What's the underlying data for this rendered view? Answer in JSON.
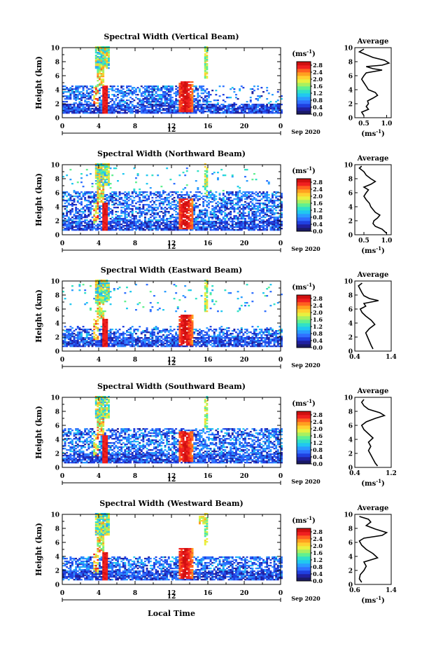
{
  "figure": {
    "xlabel": "Local Time",
    "date_label": "Sep 2020",
    "day_label": "12",
    "colorbar": {
      "unit_label": "(ms-1)",
      "ticks": [
        "0.0",
        "0.4",
        "0.8",
        "1.2",
        "1.6",
        "2.0",
        "2.4",
        "2.8"
      ],
      "colors": [
        "#1a1a66",
        "#2020a0",
        "#2040e0",
        "#3070ff",
        "#2a9cff",
        "#20c8f0",
        "#30e0c8",
        "#60f090",
        "#a8f060",
        "#e8f040",
        "#ffd030",
        "#ffa020",
        "#ff6020",
        "#f02020",
        "#d01010"
      ]
    },
    "avg_title": "Average"
  },
  "chart_data": [
    {
      "type": "heatmap",
      "title": "Spectral Width (Vertical Beam)",
      "ylabel": "Height (km)",
      "xlim": [
        0,
        24
      ],
      "ylim": [
        0,
        10
      ],
      "xticks": [
        "0",
        "4",
        "8",
        "12",
        "16",
        "20",
        "0"
      ],
      "yticks": [
        "0",
        "2",
        "4",
        "6",
        "8",
        "10"
      ],
      "clim": [
        0,
        3.0
      ],
      "average": {
        "xlabel": "(ms-1)",
        "xlim": [
          0.3,
          1.1
        ],
        "xticks": [
          "0.5",
          "1.0"
        ],
        "profile": [
          [
            0.5,
            0.3
          ],
          [
            0.45,
            0.8
          ],
          [
            0.6,
            1.2
          ],
          [
            0.55,
            1.6
          ],
          [
            0.6,
            2.0
          ],
          [
            0.58,
            2.4
          ],
          [
            0.7,
            2.8
          ],
          [
            0.8,
            3.2
          ],
          [
            0.75,
            3.6
          ],
          [
            0.6,
            4.0
          ],
          [
            0.55,
            4.5
          ],
          [
            0.5,
            5.0
          ],
          [
            0.45,
            5.5
          ],
          [
            0.5,
            6.0
          ],
          [
            0.55,
            6.4
          ],
          [
            0.9,
            6.8
          ],
          [
            0.7,
            7.0
          ],
          [
            0.55,
            7.3
          ],
          [
            0.9,
            7.5
          ],
          [
            1.05,
            7.8
          ],
          [
            0.95,
            8.2
          ],
          [
            0.7,
            8.6
          ],
          [
            0.55,
            9.0
          ],
          [
            0.4,
            9.4
          ],
          [
            0.5,
            9.8
          ]
        ]
      }
    },
    {
      "type": "heatmap",
      "title": "Spectral Width (Northward Beam)",
      "ylabel": "Height (km)",
      "xlim": [
        0,
        24
      ],
      "ylim": [
        0,
        10
      ],
      "xticks": [
        "0",
        "4",
        "8",
        "12",
        "16",
        "20",
        "0"
      ],
      "yticks": [
        "0",
        "2",
        "4",
        "6",
        "8",
        "10"
      ],
      "clim": [
        0,
        3.0
      ],
      "average": {
        "xlabel": "(ms-1)",
        "xlim": [
          0.3,
          1.1
        ],
        "xticks": [
          "0.5",
          "1.0"
        ],
        "profile": [
          [
            1.0,
            0.2
          ],
          [
            0.9,
            0.8
          ],
          [
            0.75,
            1.2
          ],
          [
            0.7,
            1.6
          ],
          [
            0.72,
            2.0
          ],
          [
            0.8,
            2.4
          ],
          [
            0.85,
            2.8
          ],
          [
            0.75,
            3.2
          ],
          [
            0.7,
            3.6
          ],
          [
            0.65,
            4.0
          ],
          [
            0.62,
            4.5
          ],
          [
            0.55,
            5.0
          ],
          [
            0.5,
            5.5
          ],
          [
            0.55,
            6.0
          ],
          [
            0.6,
            6.4
          ],
          [
            0.5,
            6.8
          ],
          [
            0.65,
            7.2
          ],
          [
            0.75,
            7.6
          ],
          [
            0.65,
            8.0
          ],
          [
            0.55,
            8.5
          ],
          [
            0.5,
            9.0
          ],
          [
            0.4,
            9.5
          ],
          [
            0.45,
            9.8
          ]
        ]
      }
    },
    {
      "type": "heatmap",
      "title": "Spectral Width (Eastward Beam)",
      "ylabel": "Height (km)",
      "xlim": [
        0,
        24
      ],
      "ylim": [
        0,
        10
      ],
      "xticks": [
        "0",
        "4",
        "8",
        "12",
        "16",
        "20",
        "0"
      ],
      "yticks": [
        "0",
        "2",
        "4",
        "6",
        "8",
        "10"
      ],
      "clim": [
        0,
        3.0
      ],
      "average": {
        "xlabel": "",
        "xlim": [
          0.4,
          1.4
        ],
        "xticks": [
          "0.4",
          "1.4"
        ],
        "profile": [
          [
            0.9,
            0.3
          ],
          [
            0.85,
            0.8
          ],
          [
            0.8,
            1.4
          ],
          [
            0.75,
            2.0
          ],
          [
            0.7,
            2.6
          ],
          [
            0.8,
            3.2
          ],
          [
            0.95,
            3.8
          ],
          [
            0.85,
            4.4
          ],
          [
            0.7,
            5.0
          ],
          [
            0.6,
            5.5
          ],
          [
            0.55,
            6.0
          ],
          [
            0.7,
            6.4
          ],
          [
            0.65,
            6.8
          ],
          [
            1.05,
            7.2
          ],
          [
            0.8,
            7.5
          ],
          [
            0.65,
            7.9
          ],
          [
            0.6,
            8.3
          ],
          [
            0.55,
            8.8
          ],
          [
            0.5,
            9.3
          ],
          [
            0.6,
            9.7
          ]
        ]
      }
    },
    {
      "type": "heatmap",
      "title": "Spectral Width (Southward Beam)",
      "ylabel": "Height (km)",
      "xlim": [
        0,
        24
      ],
      "ylim": [
        0,
        10
      ],
      "xticks": [
        "0",
        "4",
        "8",
        "12",
        "16",
        "20",
        "0"
      ],
      "yticks": [
        "0",
        "2",
        "4",
        "6",
        "8",
        "10"
      ],
      "clim": [
        0,
        3.0
      ],
      "average": {
        "xlabel": "(ms-1)",
        "xlim": [
          0.4,
          1.2
        ],
        "xticks": [
          "0.4",
          "1.2"
        ],
        "profile": [
          [
            0.9,
            0.2
          ],
          [
            0.85,
            0.6
          ],
          [
            0.8,
            1.2
          ],
          [
            0.75,
            1.8
          ],
          [
            0.7,
            2.4
          ],
          [
            0.75,
            3.0
          ],
          [
            0.7,
            3.6
          ],
          [
            0.8,
            4.2
          ],
          [
            0.7,
            4.8
          ],
          [
            0.6,
            5.4
          ],
          [
            0.55,
            6.0
          ],
          [
            0.65,
            6.5
          ],
          [
            0.85,
            7.0
          ],
          [
            1.05,
            7.4
          ],
          [
            0.95,
            7.8
          ],
          [
            0.7,
            8.3
          ],
          [
            0.6,
            8.8
          ],
          [
            0.55,
            9.3
          ],
          [
            0.6,
            9.7
          ]
        ]
      }
    },
    {
      "type": "heatmap",
      "title": "Spectral Width (Westward Beam)",
      "ylabel": "Height (km)",
      "xlim": [
        0,
        24
      ],
      "ylim": [
        0,
        10
      ],
      "xticks": [
        "0",
        "4",
        "8",
        "12",
        "16",
        "20",
        "0"
      ],
      "yticks": [
        "0",
        "2",
        "4",
        "6",
        "8",
        "10"
      ],
      "clim": [
        0,
        3.0
      ],
      "average": {
        "xlabel": "(ms-1)",
        "xlim": [
          0.6,
          1.4
        ],
        "xticks": [
          "0.6",
          "1.4"
        ],
        "profile": [
          [
            0.75,
            0.3
          ],
          [
            0.7,
            0.8
          ],
          [
            0.72,
            1.4
          ],
          [
            0.8,
            2.0
          ],
          [
            0.85,
            2.6
          ],
          [
            0.8,
            3.2
          ],
          [
            1.1,
            3.8
          ],
          [
            1.0,
            4.4
          ],
          [
            0.85,
            5.0
          ],
          [
            0.75,
            5.6
          ],
          [
            0.7,
            6.2
          ],
          [
            0.8,
            6.6
          ],
          [
            1.2,
            7.0
          ],
          [
            1.3,
            7.4
          ],
          [
            1.05,
            7.9
          ],
          [
            0.85,
            8.4
          ],
          [
            0.95,
            8.9
          ],
          [
            0.9,
            9.3
          ],
          [
            0.7,
            9.7
          ]
        ]
      }
    }
  ]
}
